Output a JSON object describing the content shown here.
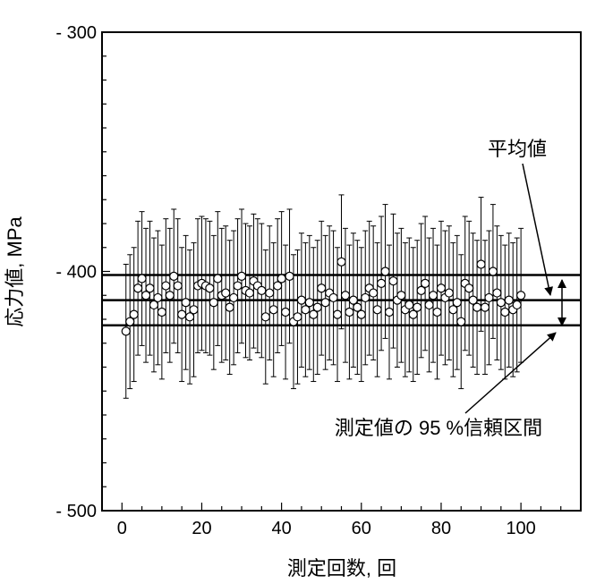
{
  "chart_data": {
    "type": "scatter",
    "title": "",
    "xlabel": "測定回数, 回",
    "ylabel": "応力値, MPa",
    "xlim": [
      -5,
      115
    ],
    "ylim": [
      -500,
      -300
    ],
    "x_ticks": [
      0,
      20,
      40,
      60,
      80,
      100
    ],
    "x_tick_labels": [
      "0",
      "20",
      "40",
      "60",
      "80",
      "100"
    ],
    "y_ticks": [
      -300,
      -400,
      -500
    ],
    "y_tick_labels": [
      "- 300",
      "- 400",
      "- 500"
    ],
    "grid": false,
    "legend": "none",
    "marker": "open-circle",
    "error_bar_half_width": 28,
    "series": [
      {
        "x": [
          1,
          2,
          3,
          4,
          5,
          6,
          7,
          8,
          9,
          10,
          11,
          12,
          13,
          14,
          15,
          16,
          17,
          18,
          19,
          20,
          21,
          22,
          23,
          24,
          25,
          26,
          27,
          28,
          29,
          30,
          31,
          32,
          33,
          34,
          35,
          36,
          37,
          38,
          39,
          40,
          41,
          42,
          43,
          44,
          45,
          46,
          47,
          48,
          49,
          50,
          51,
          52,
          53,
          54,
          55,
          56,
          57,
          58,
          59,
          60,
          61,
          62,
          63,
          64,
          65,
          66,
          67,
          68,
          69,
          70,
          71,
          72,
          73,
          74,
          75,
          76,
          77,
          78,
          79,
          80,
          81,
          82,
          83,
          84,
          85,
          86,
          87,
          88,
          89,
          90,
          91,
          92,
          93,
          94,
          95,
          96,
          97,
          98,
          99,
          100
        ],
        "y": [
          -425,
          -421,
          -418,
          -407,
          -403,
          -410,
          -407,
          -414,
          -411,
          -417,
          -406,
          -410,
          -402,
          -406,
          -418,
          -413,
          -419,
          -416,
          -406,
          -405,
          -406,
          -407,
          -413,
          -403,
          -410,
          -409,
          -415,
          -411,
          -406,
          -402,
          -408,
          -409,
          -404,
          -406,
          -408,
          -419,
          -409,
          -416,
          -406,
          -403,
          -417,
          -402,
          -421,
          -419,
          -412,
          -416,
          -413,
          -418,
          -415,
          -407,
          -413,
          -409,
          -411,
          -418,
          -396,
          -410,
          -417,
          -412,
          -415,
          -418,
          -411,
          -407,
          -409,
          -416,
          -405,
          -400,
          -417,
          -404,
          -412,
          -410,
          -416,
          -414,
          -418,
          -415,
          -408,
          -405,
          -414,
          -410,
          -417,
          -407,
          -411,
          -409,
          -416,
          -413,
          -421,
          -405,
          -407,
          -412,
          -415,
          -397,
          -415,
          -411,
          -400,
          -409,
          -413,
          -417,
          -412,
          -416,
          -414,
          -410
        ]
      }
    ],
    "reference_lines": {
      "mean": -412,
      "ci_upper": -401.5,
      "ci_lower": -422.5,
      "x_start": -5,
      "x_end": 115
    },
    "annotations": {
      "mean_label": "平均値",
      "ci_label": "測定値の 95 %信頼区間"
    }
  }
}
